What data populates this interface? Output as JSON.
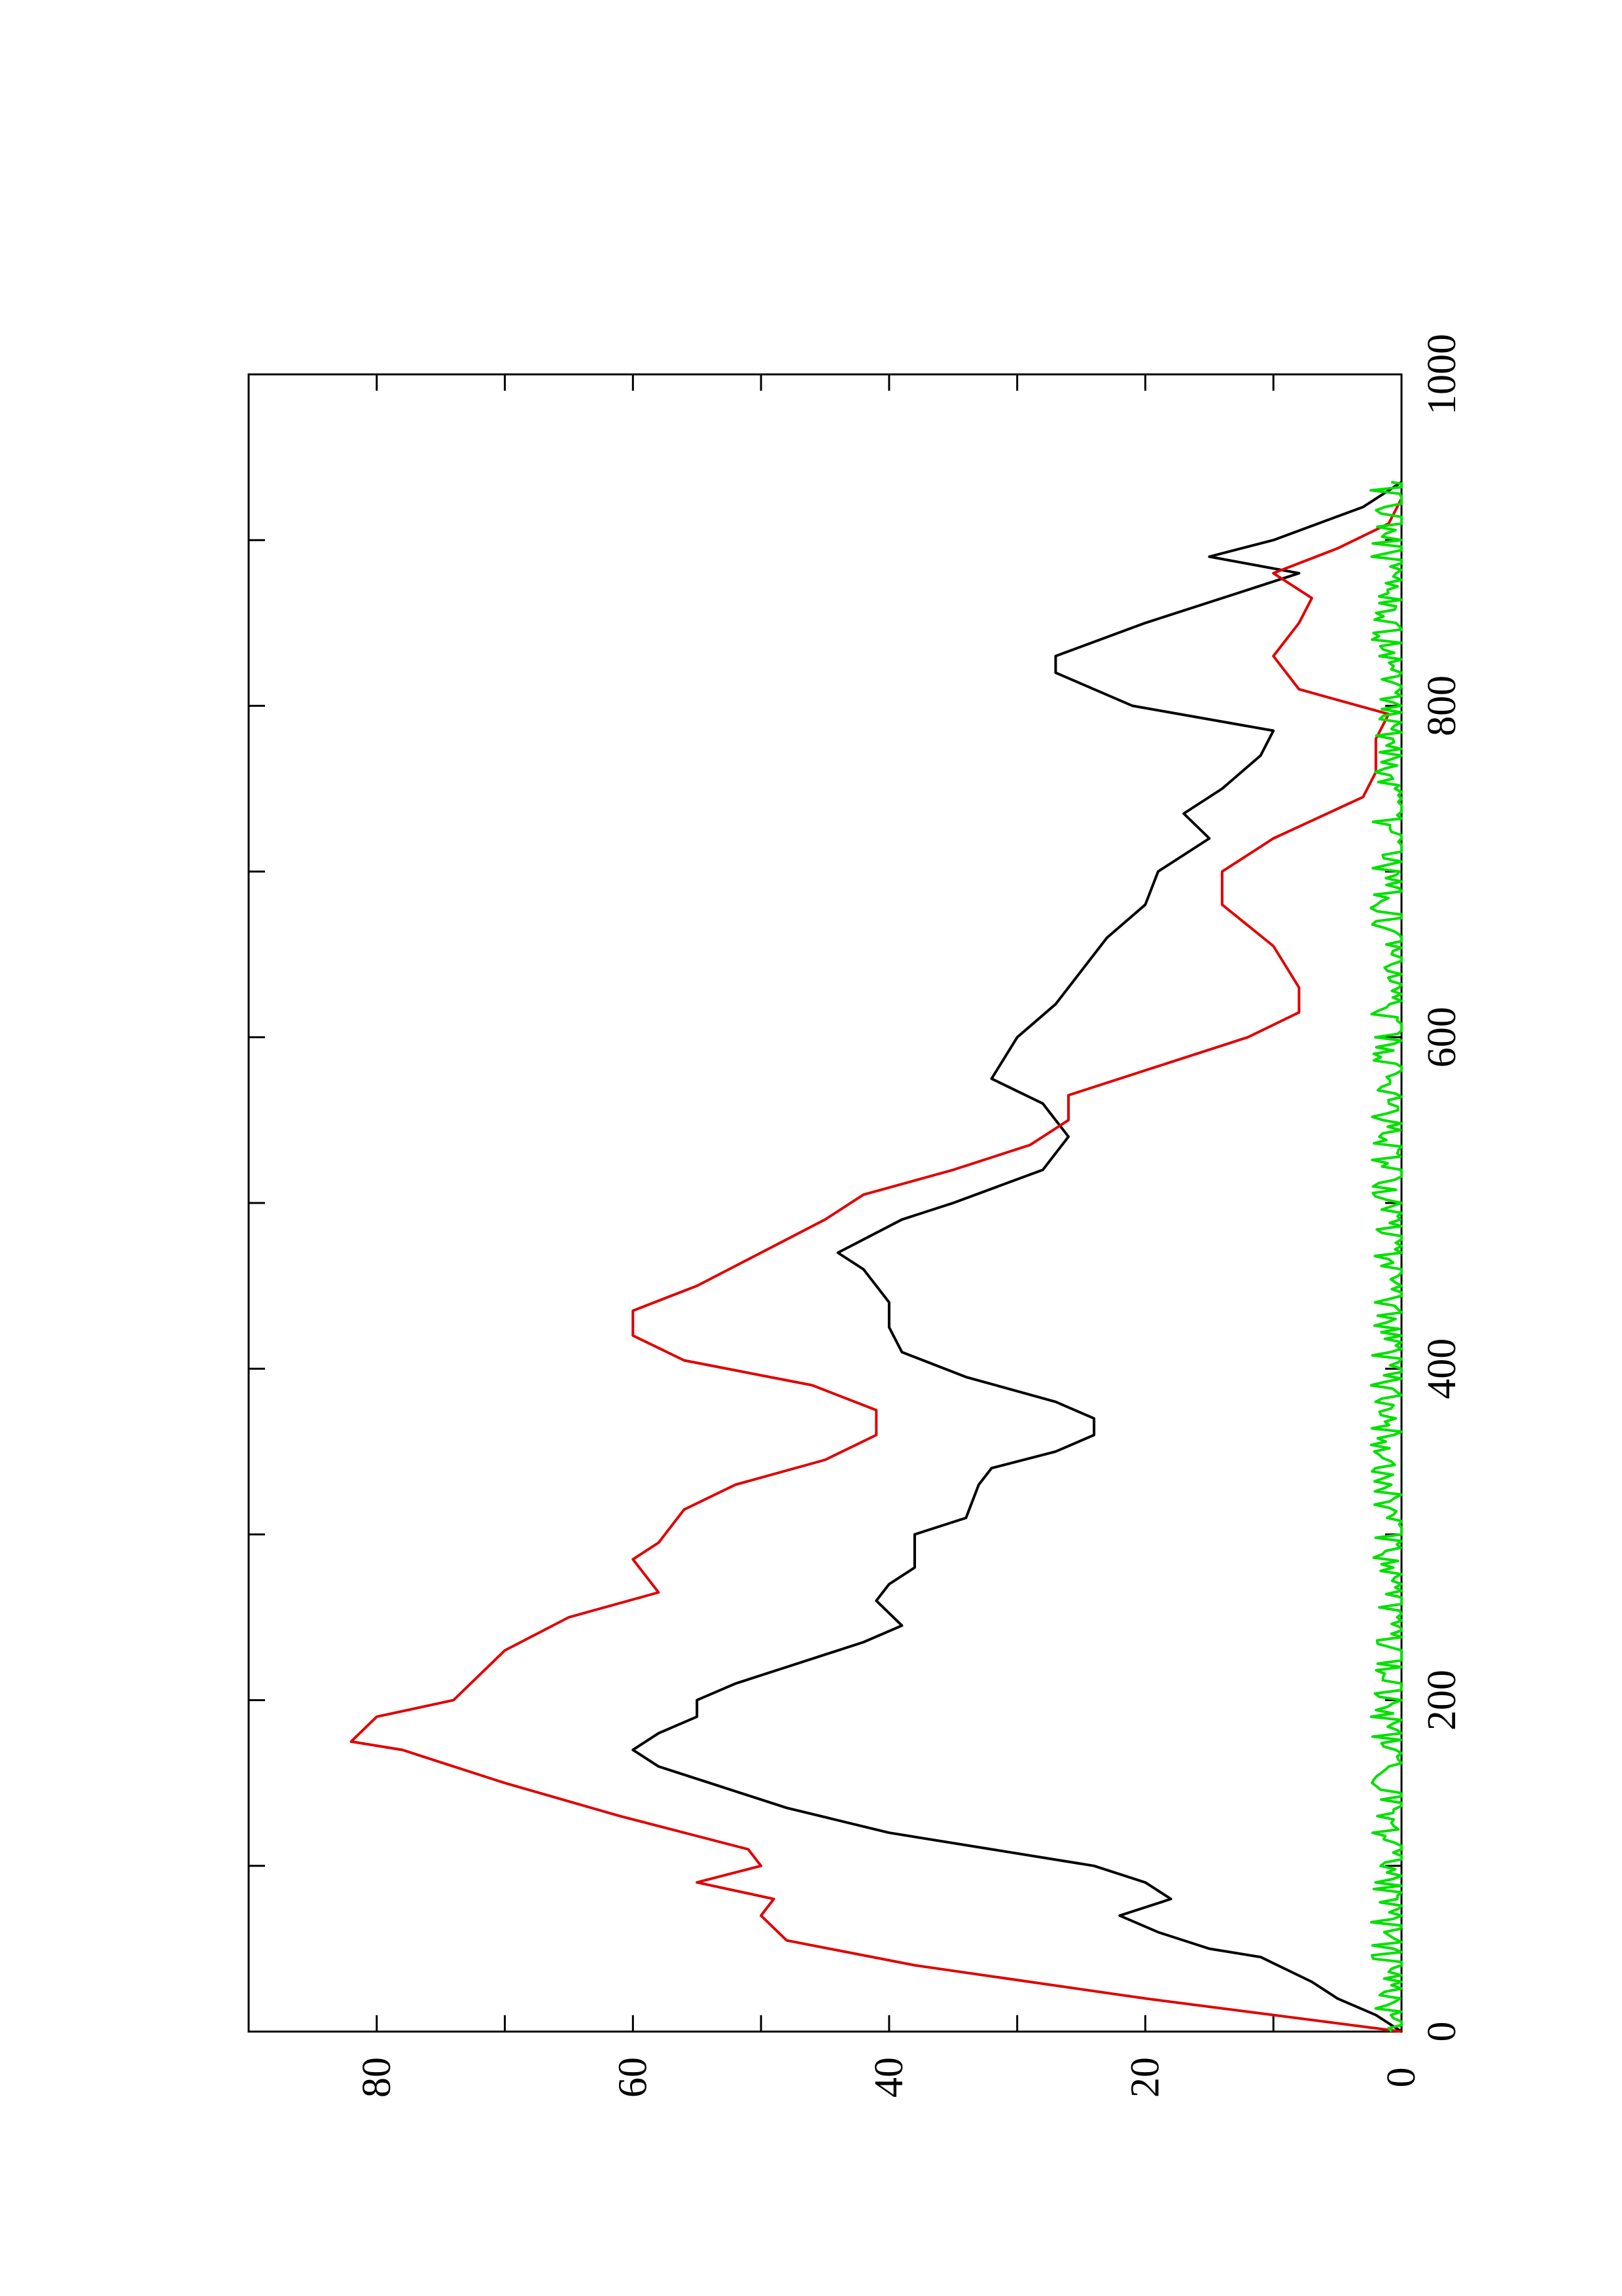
{
  "chart_data": {
    "type": "line",
    "orientation": "rotated-90-counterclockwise",
    "title": "",
    "xlabel": "",
    "ylabel": "",
    "xlim": [
      0,
      1000
    ],
    "ylim": [
      0,
      90
    ],
    "x_ticks": [
      "0",
      "200",
      "400",
      "600",
      "800",
      "1000"
    ],
    "y_ticks": [
      "0",
      "20",
      "40",
      "60",
      "80"
    ],
    "grid": false,
    "legend": "none",
    "colors": {
      "black": "#000000",
      "red": "#e00000",
      "green": "#00e000"
    },
    "series": [
      {
        "color": "#000000",
        "x": [
          0,
          10,
          20,
          30,
          45,
          50,
          60,
          70,
          80,
          90,
          100,
          110,
          120,
          135,
          150,
          160,
          170,
          180,
          190,
          200,
          210,
          220,
          235,
          245,
          260,
          270,
          280,
          300,
          310,
          330,
          340,
          350,
          360,
          370,
          380,
          395,
          410,
          425,
          440,
          460,
          470,
          490,
          500,
          520,
          540,
          560,
          575,
          600,
          620,
          640,
          660,
          680,
          700,
          720,
          735,
          750,
          770,
          785,
          800,
          820,
          830,
          850,
          870,
          880,
          890,
          900,
          920,
          935
        ],
        "y": [
          0,
          2,
          5,
          7,
          11,
          15,
          19,
          22,
          18,
          20,
          24,
          32,
          40,
          48,
          54,
          58,
          60,
          58,
          55,
          55,
          52,
          48,
          42,
          39,
          41,
          40,
          38,
          38,
          34,
          33,
          32,
          27,
          24,
          24,
          27,
          34,
          39,
          40,
          40,
          42,
          44,
          39,
          35,
          28,
          26,
          28,
          32,
          30,
          27,
          25,
          23,
          20,
          19,
          15,
          17,
          14,
          11,
          10,
          21,
          27,
          27,
          20,
          12,
          8,
          15,
          10,
          3,
          0
        ]
      },
      {
        "color": "#e00000",
        "x": [
          0,
          20,
          40,
          55,
          70,
          80,
          90,
          100,
          110,
          130,
          150,
          170,
          175,
          190,
          200,
          215,
          230,
          250,
          265,
          285,
          295,
          315,
          330,
          345,
          360,
          375,
          390,
          405,
          420,
          435,
          450,
          470,
          490,
          505,
          520,
          535,
          550,
          565,
          580,
          600,
          615,
          630,
          655,
          680,
          700,
          720,
          745,
          760,
          780,
          795,
          810,
          830,
          850,
          865,
          880,
          895,
          910,
          925
        ],
        "y": [
          0,
          20,
          38,
          48,
          50,
          49,
          55,
          50,
          51,
          61,
          70,
          78,
          82,
          80,
          74,
          72,
          70,
          65,
          58,
          60,
          58,
          56,
          52,
          45,
          41,
          41,
          46,
          56,
          60,
          60,
          55,
          50,
          45,
          42,
          35,
          29,
          26,
          26,
          20,
          12,
          8,
          8,
          10,
          14,
          14,
          10,
          3,
          2,
          2,
          1,
          8,
          10,
          8,
          7,
          10,
          5,
          1,
          0
        ]
      },
      {
        "color": "#00e000",
        "x": [
          0,
          50,
          100,
          150,
          200,
          250,
          300,
          350,
          400,
          450,
          500,
          550,
          600,
          650,
          700,
          750,
          800,
          850,
          900,
          935
        ],
        "y": [
          0.8,
          0.8,
          0.8,
          0.8,
          0.8,
          0.8,
          0.8,
          0.8,
          0.8,
          0.8,
          0.8,
          0.8,
          0.8,
          0.8,
          0.8,
          0.8,
          0.8,
          0.8,
          0.8,
          0.8
        ]
      }
    ]
  }
}
